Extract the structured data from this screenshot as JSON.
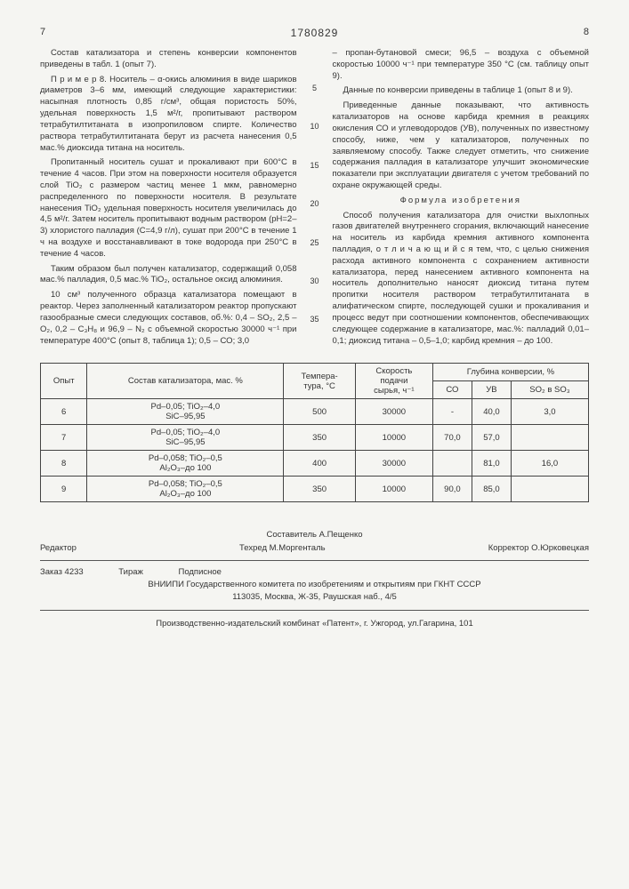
{
  "pageLeft": "7",
  "docNumber": "1780829",
  "pageRight": "8",
  "leftCol": {
    "p1": "Состав катализатора и степень конверсии компонентов приведены в табл. 1 (опыт 7).",
    "p2": "П р и м е р 8. Носитель – α-окись алюминия в виде шариков диаметров 3–6 мм, имеющий следующие характеристики: насыпная плотность 0,85 г/см³, общая пористость 50%, удельная поверхность 1,5 м²/г, пропитывают раствором тетрабутилтитаната в изопропиловом спирте. Количество раствора тетрабутилтитаната берут из расчета нанесения 0,5 мас.% диоксида титана на носитель.",
    "p3": "Пропитанный носитель сушат и прокаливают при 600°С в течение 4 часов. При этом на поверхности носителя образуется слой TiO₂ с размером частиц менее 1 мкм, равномерно распределенного по поверхности носителя. В результате нанесения TiO₂ удельная поверхность носителя увеличилась до 4,5 м²/г. Затем носитель пропитывают водным раствором (pH=2–3) хлористого палладия (C=4,9 г/л), сушат при 200°С в течение 1 ч на воздухе и восстанавливают в токе водорода при 250°С в течение 4 часов.",
    "p4": "Таким образом был получен катализатор, содержащий 0,058 мас.% палладия, 0,5 мас.% TiO₂, остальное оксид алюминия.",
    "p5": "10 см³ полученного образца катализатора помещают в реактор. Через заполненный катализатором реактор пропускают газообразные смеси следующих составов, об.%: 0,4 – SO₂, 2,5 – O₂, 0,2 – С₃H₈ и 96,9 – N₂ с объемной скоростью 30000 ч⁻¹ при температуре 400°С (опыт 8, таблица 1); 0,5 – СО; 3,0"
  },
  "rightCol": {
    "p1": "– пропан-бутановой смеси; 96,5 – воздуха с объемной скоростью 10000 ч⁻¹ при температуре 350 °С (см. таблицу опыт 9).",
    "p2": "Данные по конверсии приведены в таблице 1 (опыт 8 и 9).",
    "p3": "Приведенные данные показывают, что активность катализаторов на основе карбида кремния в реакциях окисления СО и углеводородов (УВ), полученных по известному способу, ниже, чем у катализаторов, полученных по заявляемому способу. Также следует отметить, что снижение содержания палладия в катализаторе улучшит экономические показатели при эксплуатации двигателя с учетом требований по охране окружающей среды.",
    "formulaTitle": "Формула изобретения",
    "p4": "Способ получения катализатора для очистки выхлопных газов двигателей внутреннего сгорания, включающий нанесение на носитель из карбида кремния активного компонента палладия, о т л и ч а ю щ и й с я тем, что, с целью снижения расхода активного компонента с сохранением активности катализатора, перед нанесением активного компонента на носитель дополнительно наносят диоксид титана путем пропитки носителя раствором тетрабутилтитаната в алифатическом спирте, последующей сушки и прокаливания и процесс ведут при соотношении компонентов, обеспечивающих следующее содержание в катализаторе, мас.%: палладий 0,01–0,1; диоксид титана – 0,5–1,0; карбид кремния – до 100."
  },
  "lineMarks": [
    "5",
    "10",
    "15",
    "20",
    "25",
    "30",
    "35"
  ],
  "table": {
    "headers": {
      "c1": "Опыт",
      "c2": "Состав катализатора, мас. %",
      "c3": "Темпера-\nтура, °С",
      "c4": "Скорость\nподачи\nсырья, ч⁻¹",
      "grp": "Глубина конверсии, %",
      "g1": "СО",
      "g2": "УВ",
      "g3": "SO₂ в SO₃"
    },
    "rows": [
      {
        "n": "6",
        "comp": "Pd–0,05; TiO₂–4,0\nSiC–95,95",
        "t": "500",
        "v": "30000",
        "co": "-",
        "uv": "40,0",
        "so": "3,0"
      },
      {
        "n": "7",
        "comp": "Pd–0,05; TiO₂–4,0\nSiC–95,95",
        "t": "350",
        "v": "10000",
        "co": "70,0",
        "uv": "57,0",
        "so": ""
      },
      {
        "n": "8",
        "comp": "Pd–0,058; TiO₂–0,5\nAl₂O₃–до 100",
        "t": "400",
        "v": "30000",
        "co": "",
        "uv": "81,0",
        "so": "16,0"
      },
      {
        "n": "9",
        "comp": "Pd–0,058; TiO₂–0,5\nAl₂O₃–до 100",
        "t": "350",
        "v": "10000",
        "co": "90,0",
        "uv": "85,0",
        "so": ""
      }
    ]
  },
  "footer": {
    "compiler": "Составитель А.Пещенко",
    "editor": "Редактор",
    "tech": "Техред М.Моргенталь",
    "corr": "Корректор О.Юрковецкая",
    "orderLine": "Заказ 4233               Тираж               Подписное",
    "org": "ВНИИПИ Государственного комитета по изобретениям и открытиям при ГКНТ СССР",
    "addr": "113035, Москва, Ж-35, Раушская наб., 4/5",
    "pub": "Производственно-издательский комбинат «Патент», г. Ужгород, ул.Гагарина, 101"
  }
}
